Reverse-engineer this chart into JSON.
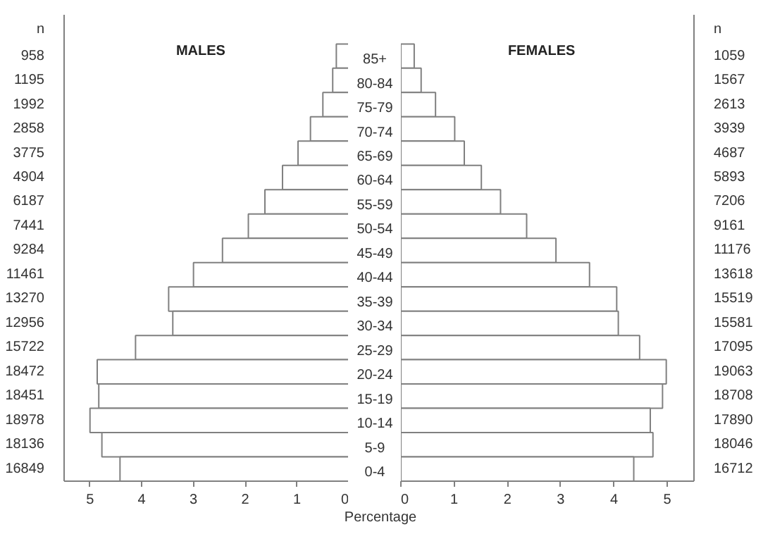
{
  "chart_data": [
    {
      "type": "bar",
      "orientation": "horizontal",
      "title": "MALES",
      "ylabel": "n",
      "color": "#ffffff",
      "xlim": [
        5.5,
        0
      ],
      "xticks": [
        0,
        1,
        2,
        3,
        4,
        5
      ],
      "tick_labels": "x",
      "grid": false,
      "categories": [
        "85+",
        "80-84",
        "75-79",
        "70-74",
        "65-69",
        "60-64",
        "55-59",
        "50-54",
        "45-49",
        "40-44",
        "35-39",
        "30-34",
        "25-29",
        "20-24",
        "15-19",
        "10-14",
        "5-9",
        "0-4"
      ],
      "values": [
        0.24,
        0.31,
        0.5,
        0.74,
        0.98,
        1.28,
        1.62,
        1.94,
        2.44,
        3.0,
        3.48,
        3.4,
        4.12,
        4.86,
        4.83,
        5.0,
        4.77,
        4.42
      ],
      "annotations": [
        "958",
        "1195",
        "1992",
        "2858",
        "3775",
        "4904",
        "6187",
        "7441",
        "9284",
        "11461",
        "13270",
        "12956",
        "15722",
        "18472",
        "18451",
        "18978",
        "18136",
        "16849"
      ]
    },
    {
      "type": "bar",
      "orientation": "horizontal",
      "title": "FEMALES",
      "ylabel": "n",
      "xlabel": "Percentage",
      "color": "#ffffff",
      "xlim": [
        0,
        5.5
      ],
      "xticks": [
        0,
        1,
        2,
        3,
        4,
        5
      ],
      "grid": false,
      "categories": [
        "85+",
        "80-84",
        "75-79",
        "70-74",
        "65-69",
        "60-64",
        "55-59",
        "50-54",
        "45-49",
        "40-44",
        "35-39",
        "30-34",
        "25-29",
        "20-24",
        "15-19",
        "10-14",
        "5-9",
        "0-4"
      ],
      "values": [
        0.25,
        0.38,
        0.65,
        1.01,
        1.19,
        1.51,
        1.87,
        2.36,
        2.91,
        3.54,
        4.05,
        4.08,
        4.48,
        4.98,
        4.91,
        4.68,
        4.73,
        4.37
      ],
      "annotations": [
        "1059",
        "1567",
        "2613",
        "3939",
        "4687",
        "5893",
        "7206",
        "9161",
        "11176",
        "13618",
        "15519",
        "15581",
        "17095",
        "19063",
        "18708",
        "17890",
        "18046",
        "16712"
      ]
    }
  ]
}
